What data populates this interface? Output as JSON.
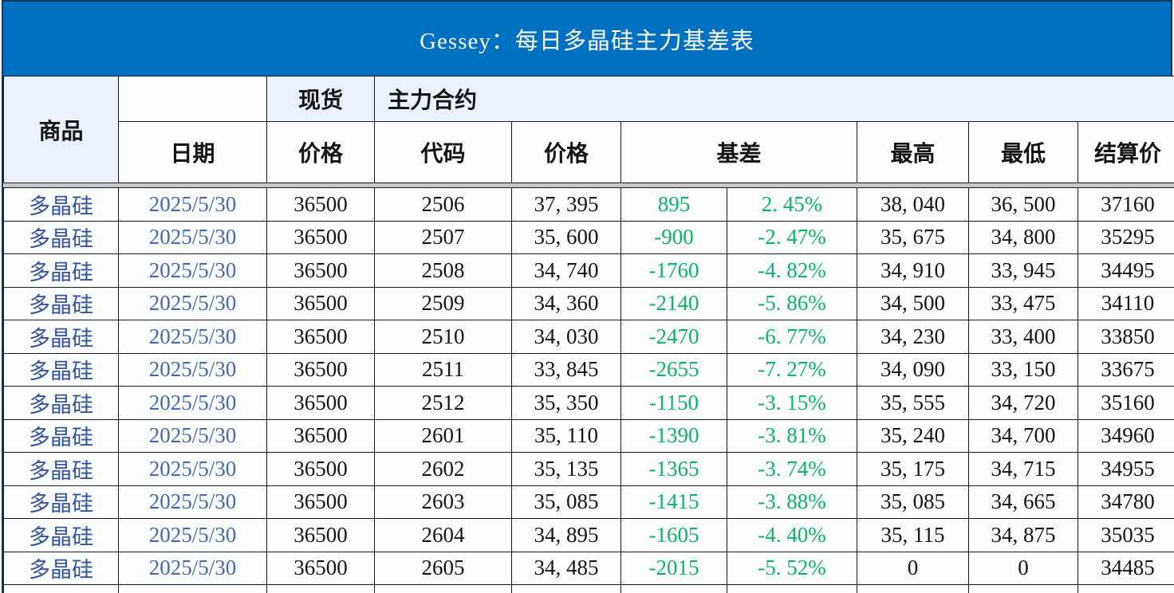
{
  "title": "Gessey：每日多晶硅主力基差表",
  "header": {
    "commodity": "商品",
    "date": "日期",
    "spot_group": "现货",
    "main_contract_group": "主力合约",
    "spot_price": "价格",
    "code": "代码",
    "price": "价格",
    "basis": "基差",
    "high": "最高",
    "low": "最低",
    "settlement": "结算价"
  },
  "colors": {
    "title_bar_bg": "#0071c1",
    "title_text": "#ffffff",
    "group_header_bg": "#eaf1fa",
    "cell_bg": "#fbfdff",
    "separator_band": "#c9c9c9",
    "commodity_text": "#3353a0",
    "date_text": "#4767b4",
    "basis_green": "#0cb563",
    "number_text": "#151515"
  },
  "rows": [
    {
      "commodity": "多晶硅",
      "date": "2025/5/30",
      "spot_price": "36500",
      "code": "2506",
      "price": "37, 395",
      "basis": "895",
      "basis_pct": "2. 45%",
      "high": "38, 040",
      "low": "36, 500",
      "settlement": "37160"
    },
    {
      "commodity": "多晶硅",
      "date": "2025/5/30",
      "spot_price": "36500",
      "code": "2507",
      "price": "35, 600",
      "basis": "-900",
      "basis_pct": "-2. 47%",
      "high": "35, 675",
      "low": "34, 800",
      "settlement": "35295"
    },
    {
      "commodity": "多晶硅",
      "date": "2025/5/30",
      "spot_price": "36500",
      "code": "2508",
      "price": "34, 740",
      "basis": "-1760",
      "basis_pct": "-4. 82%",
      "high": "34, 910",
      "low": "33, 945",
      "settlement": "34495"
    },
    {
      "commodity": "多晶硅",
      "date": "2025/5/30",
      "spot_price": "36500",
      "code": "2509",
      "price": "34, 360",
      "basis": "-2140",
      "basis_pct": "-5. 86%",
      "high": "34, 500",
      "low": "33, 475",
      "settlement": "34110"
    },
    {
      "commodity": "多晶硅",
      "date": "2025/5/30",
      "spot_price": "36500",
      "code": "2510",
      "price": "34, 030",
      "basis": "-2470",
      "basis_pct": "-6. 77%",
      "high": "34, 230",
      "low": "33, 400",
      "settlement": "33850"
    },
    {
      "commodity": "多晶硅",
      "date": "2025/5/30",
      "spot_price": "36500",
      "code": "2511",
      "price": "33, 845",
      "basis": "-2655",
      "basis_pct": "-7. 27%",
      "high": "34, 090",
      "low": "33, 150",
      "settlement": "33675"
    },
    {
      "commodity": "多晶硅",
      "date": "2025/5/30",
      "spot_price": "36500",
      "code": "2512",
      "price": "35, 350",
      "basis": "-1150",
      "basis_pct": "-3. 15%",
      "high": "35, 555",
      "low": "34, 720",
      "settlement": "35160"
    },
    {
      "commodity": "多晶硅",
      "date": "2025/5/30",
      "spot_price": "36500",
      "code": "2601",
      "price": "35, 110",
      "basis": "-1390",
      "basis_pct": "-3. 81%",
      "high": "35, 240",
      "low": "34, 700",
      "settlement": "34960"
    },
    {
      "commodity": "多晶硅",
      "date": "2025/5/30",
      "spot_price": "36500",
      "code": "2602",
      "price": "35, 135",
      "basis": "-1365",
      "basis_pct": "-3. 74%",
      "high": "35, 175",
      "low": "34, 715",
      "settlement": "34955"
    },
    {
      "commodity": "多晶硅",
      "date": "2025/5/30",
      "spot_price": "36500",
      "code": "2603",
      "price": "35, 085",
      "basis": "-1415",
      "basis_pct": "-3. 88%",
      "high": "35, 085",
      "low": "34, 665",
      "settlement": "34780"
    },
    {
      "commodity": "多晶硅",
      "date": "2025/5/30",
      "spot_price": "36500",
      "code": "2604",
      "price": "34, 895",
      "basis": "-1605",
      "basis_pct": "-4. 40%",
      "high": "35, 115",
      "low": "34, 875",
      "settlement": "35035"
    },
    {
      "commodity": "多晶硅",
      "date": "2025/5/30",
      "spot_price": "36500",
      "code": "2605",
      "price": "34, 485",
      "basis": "-2015",
      "basis_pct": "-5. 52%",
      "high": "0",
      "low": "0",
      "settlement": "34485"
    }
  ],
  "chart_data": {
    "type": "table",
    "title": "Gessey：每日多晶硅主力基差表",
    "columns": [
      "商品",
      "日期",
      "现货价格",
      "代码",
      "价格",
      "基差",
      "基差%",
      "最高",
      "最低",
      "结算价"
    ],
    "rows": [
      [
        "多晶硅",
        "2025/5/30",
        36500,
        "2506",
        37395,
        895,
        "2.45%",
        38040,
        36500,
        37160
      ],
      [
        "多晶硅",
        "2025/5/30",
        36500,
        "2507",
        35600,
        -900,
        "-2.47%",
        35675,
        34800,
        35295
      ],
      [
        "多晶硅",
        "2025/5/30",
        36500,
        "2508",
        34740,
        -1760,
        "-4.82%",
        34910,
        33945,
        34495
      ],
      [
        "多晶硅",
        "2025/5/30",
        36500,
        "2509",
        34360,
        -2140,
        "-5.86%",
        34500,
        33475,
        34110
      ],
      [
        "多晶硅",
        "2025/5/30",
        36500,
        "2510",
        34030,
        -2470,
        "-6.77%",
        34230,
        33400,
        33850
      ],
      [
        "多晶硅",
        "2025/5/30",
        36500,
        "2511",
        33845,
        -2655,
        "-7.27%",
        34090,
        33150,
        33675
      ],
      [
        "多晶硅",
        "2025/5/30",
        36500,
        "2512",
        35350,
        -1150,
        "-3.15%",
        35555,
        34720,
        35160
      ],
      [
        "多晶硅",
        "2025/5/30",
        36500,
        "2601",
        35110,
        -1390,
        "-3.81%",
        35240,
        34700,
        34960
      ],
      [
        "多晶硅",
        "2025/5/30",
        36500,
        "2602",
        35135,
        -1365,
        "-3.74%",
        35175,
        34715,
        34955
      ],
      [
        "多晶硅",
        "2025/5/30",
        36500,
        "2603",
        35085,
        -1415,
        "-3.88%",
        35085,
        34665,
        34780
      ],
      [
        "多晶硅",
        "2025/5/30",
        36500,
        "2604",
        34895,
        -1605,
        "-4.40%",
        35115,
        34875,
        35035
      ],
      [
        "多晶硅",
        "2025/5/30",
        36500,
        "2605",
        34485,
        -2015,
        "-5.52%",
        0,
        0,
        34485
      ]
    ]
  }
}
